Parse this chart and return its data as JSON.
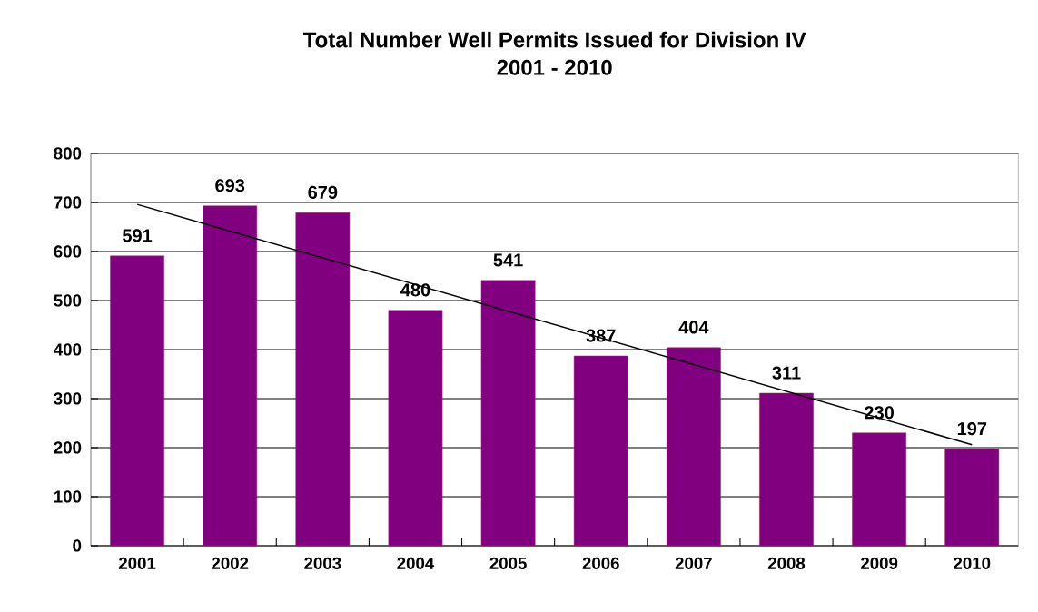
{
  "chart_data": {
    "type": "bar",
    "title": "Total Number Well Permits Issued for Division IV",
    "subtitle": "2001 - 2010",
    "x": [
      2001,
      2002,
      2003,
      2004,
      2005,
      2006,
      2007,
      2008,
      2009,
      2010
    ],
    "xlim": [
      2000.5,
      2010.5
    ],
    "xticks": [
      2001,
      2002,
      2003,
      2004,
      2005,
      2006,
      2007,
      2008,
      2009,
      2010
    ],
    "ylim": [
      0,
      800
    ],
    "yticks": [
      0,
      100,
      200,
      300,
      400,
      500,
      600,
      700,
      800
    ],
    "grid": "y",
    "series": [
      {
        "color": "#800080",
        "values": [
          591,
          693,
          679,
          480,
          541,
          387,
          404,
          311,
          230,
          197
        ],
        "value_labels": [
          "591",
          "693",
          "679",
          "480",
          "541",
          "387",
          "404",
          "311",
          "230",
          "197"
        ]
      },
      {
        "type": "line",
        "color": "#000000",
        "x": [
          2001,
          2010
        ],
        "values": [
          696,
          206
        ]
      }
    ]
  }
}
